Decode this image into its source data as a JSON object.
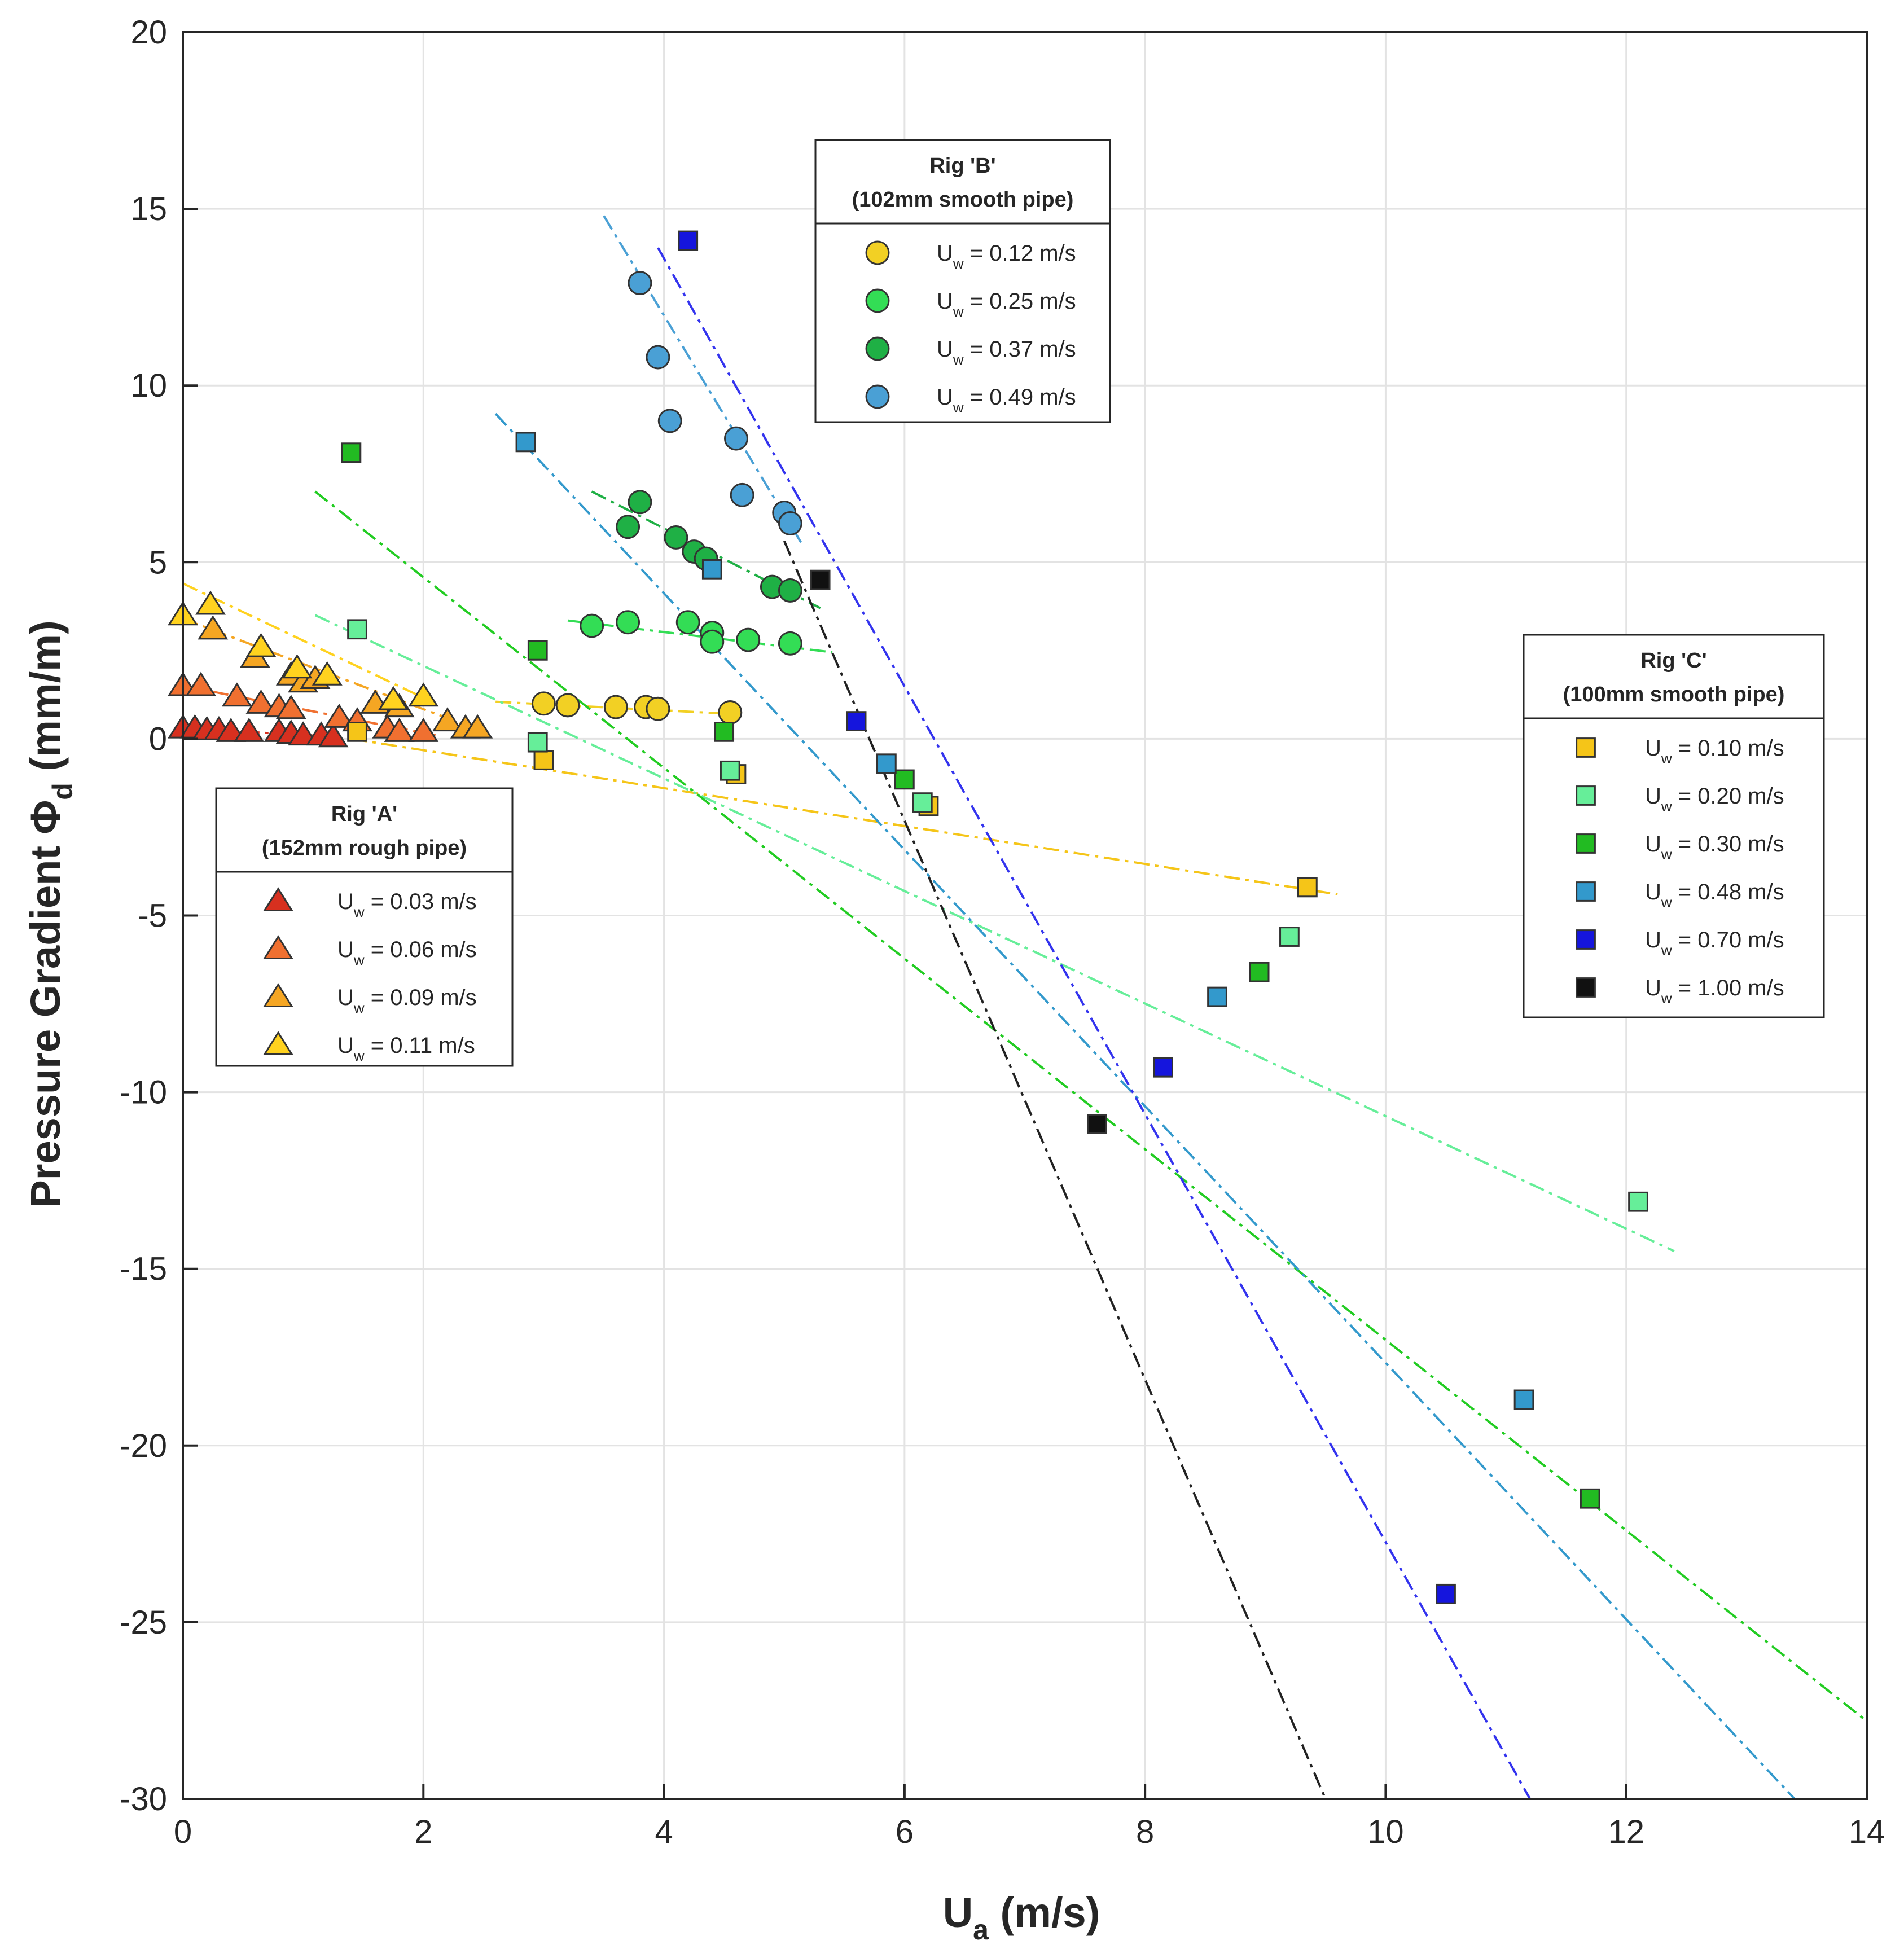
{
  "chart_data": {
    "type": "scatter",
    "xlabel": "U",
    "xlabel_sub": "a",
    "xlabel_unit": " (m/s)",
    "ylabel": "Pressure Gradient  Φ",
    "ylabel_sub": "d",
    "ylabel_unit": " (mm/m)",
    "xlim": [
      0,
      14
    ],
    "ylim": [
      -30,
      20
    ],
    "xticks": [
      0,
      2,
      4,
      6,
      8,
      10,
      12,
      14
    ],
    "yticks": [
      -30,
      -25,
      -20,
      -15,
      -10,
      -5,
      0,
      5,
      10,
      15,
      20
    ],
    "grid": true,
    "legends": [
      {
        "id": "A",
        "title_line1": "Rig 'A'",
        "title_line2": "(152mm rough pipe)",
        "placement": "lower-left",
        "entries": [
          {
            "series": "A1",
            "label_pre": "U",
            "label_sub": "w",
            "label_post": " = 0.03 m/s"
          },
          {
            "series": "A2",
            "label_pre": "U",
            "label_sub": "w",
            "label_post": " = 0.06 m/s"
          },
          {
            "series": "A3",
            "label_pre": "U",
            "label_sub": "w",
            "label_post": " = 0.09 m/s"
          },
          {
            "series": "A4",
            "label_pre": "U",
            "label_sub": "w",
            "label_post": " = 0.11 m/s"
          }
        ]
      },
      {
        "id": "B",
        "title_line1": "Rig 'B'",
        "title_line2": "(102mm smooth pipe)",
        "placement": "top-center",
        "entries": [
          {
            "series": "B1",
            "label_pre": "U",
            "label_sub": "w",
            "label_post": " = 0.12 m/s"
          },
          {
            "series": "B2",
            "label_pre": "U",
            "label_sub": "w",
            "label_post": " = 0.25 m/s"
          },
          {
            "series": "B3",
            "label_pre": "U",
            "label_sub": "w",
            "label_post": " = 0.37 m/s"
          },
          {
            "series": "B4",
            "label_pre": "U",
            "label_sub": "w",
            "label_post": " = 0.49 m/s"
          }
        ]
      },
      {
        "id": "C",
        "title_line1": "Rig 'C'",
        "title_line2": "(100mm smooth pipe)",
        "placement": "right",
        "entries": [
          {
            "series": "C1",
            "label_pre": "U",
            "label_sub": "w",
            "label_post": " = 0.10 m/s"
          },
          {
            "series": "C2",
            "label_pre": "U",
            "label_sub": "w",
            "label_post": " = 0.20 m/s"
          },
          {
            "series": "C3",
            "label_pre": "U",
            "label_sub": "w",
            "label_post": " = 0.30 m/s"
          },
          {
            "series": "C4",
            "label_pre": "U",
            "label_sub": "w",
            "label_post": " = 0.48 m/s"
          },
          {
            "series": "C5",
            "label_pre": "U",
            "label_sub": "w",
            "label_post": " = 0.70 m/s"
          },
          {
            "series": "C6",
            "label_pre": "U",
            "label_sub": "w",
            "label_post": " = 1.00 m/s"
          }
        ]
      }
    ],
    "series": [
      {
        "id": "A1",
        "rig": "A",
        "uw": 0.03,
        "marker": "triangle",
        "color": "#d7301f",
        "x": [
          0.0,
          0.1,
          0.2,
          0.3,
          0.4,
          0.55,
          0.8,
          0.9,
          1.0,
          1.15,
          1.25
        ],
        "y": [
          0.3,
          0.3,
          0.25,
          0.25,
          0.2,
          0.2,
          0.2,
          0.15,
          0.1,
          0.1,
          0.05
        ],
        "trend": {
          "color": "#d7301f",
          "x": [
            0.0,
            1.3
          ],
          "y": [
            0.3,
            0.05
          ]
        }
      },
      {
        "id": "A2",
        "rig": "A",
        "uw": 0.06,
        "marker": "triangle",
        "color": "#f07030",
        "x": [
          0.0,
          0.15,
          0.45,
          0.65,
          0.8,
          0.9,
          1.3,
          1.45,
          1.7,
          1.8,
          2.0
        ],
        "y": [
          1.5,
          1.5,
          1.2,
          1.0,
          0.9,
          0.85,
          0.6,
          0.5,
          0.3,
          0.2,
          0.2
        ],
        "trend": {
          "color": "#f07030",
          "x": [
            0.0,
            2.1
          ],
          "y": [
            1.5,
            0.1
          ]
        }
      },
      {
        "id": "A3",
        "rig": "A",
        "uw": 0.09,
        "marker": "triangle",
        "color": "#f5a623",
        "x": [
          0.25,
          0.6,
          0.9,
          1.0,
          1.1,
          1.6,
          1.8,
          2.2,
          2.35,
          2.45
        ],
        "y": [
          3.1,
          2.3,
          1.8,
          1.6,
          1.7,
          1.0,
          0.9,
          0.5,
          0.3,
          0.3
        ],
        "trend": {
          "color": "#f5a623",
          "x": [
            0.0,
            2.5
          ],
          "y": [
            3.4,
            0.2
          ]
        }
      },
      {
        "id": "A4",
        "rig": "A",
        "uw": 0.11,
        "marker": "triangle",
        "color": "#ffd21f",
        "x": [
          0.0,
          0.23,
          0.65,
          0.95,
          1.2,
          1.75,
          2.0
        ],
        "y": [
          3.5,
          3.8,
          2.6,
          2.0,
          1.8,
          1.1,
          1.2
        ],
        "trend": {
          "color": "#ffd21f",
          "x": [
            0.0,
            2.1
          ],
          "y": [
            4.4,
            1.0
          ]
        }
      },
      {
        "id": "B1",
        "rig": "B",
        "uw": 0.12,
        "marker": "circle",
        "color": "#f2d024",
        "x": [
          3.0,
          3.2,
          3.6,
          3.85,
          3.95,
          4.55
        ],
        "y": [
          1.0,
          0.95,
          0.9,
          0.9,
          0.85,
          0.75
        ],
        "trend": {
          "color": "#f2d024",
          "x": [
            2.6,
            4.6
          ],
          "y": [
            1.05,
            0.7
          ]
        }
      },
      {
        "id": "B2",
        "rig": "B",
        "uw": 0.25,
        "marker": "circle",
        "color": "#33dd55",
        "x": [
          3.4,
          3.7,
          4.2,
          4.4,
          4.4,
          4.7,
          5.05
        ],
        "y": [
          3.2,
          3.3,
          3.3,
          3.0,
          2.75,
          2.8,
          2.7
        ],
        "trend": {
          "color": "#33dd55",
          "x": [
            3.2,
            5.4
          ],
          "y": [
            3.35,
            2.45
          ]
        }
      },
      {
        "id": "B3",
        "rig": "B",
        "uw": 0.37,
        "marker": "circle",
        "color": "#1fb045",
        "x": [
          3.7,
          3.8,
          4.1,
          4.25,
          4.35,
          4.9,
          5.05
        ],
        "y": [
          6.0,
          6.7,
          5.7,
          5.3,
          5.1,
          4.3,
          4.2
        ],
        "trend": {
          "color": "#1fb045",
          "x": [
            3.4,
            5.3
          ],
          "y": [
            7.0,
            3.7
          ]
        }
      },
      {
        "id": "B4",
        "rig": "B",
        "uw": 0.49,
        "marker": "circle",
        "color": "#4aa0d5",
        "x": [
          3.8,
          3.95,
          4.05,
          4.6,
          4.65,
          5.0,
          5.05
        ],
        "y": [
          12.9,
          10.8,
          9.0,
          8.5,
          6.9,
          6.4,
          6.1
        ],
        "trend": {
          "color": "#4aa0d5",
          "x": [
            3.5,
            5.15
          ],
          "y": [
            14.8,
            5.5
          ]
        }
      },
      {
        "id": "C1",
        "rig": "C",
        "uw": 0.1,
        "marker": "square",
        "color": "#f5c518",
        "x": [
          1.45,
          3.0,
          4.6,
          6.2,
          9.35
        ],
        "y": [
          0.2,
          -0.6,
          -1.0,
          -1.9,
          -4.2
        ],
        "trend": {
          "color": "#f5c518",
          "x": [
            1.4,
            9.6
          ],
          "y": [
            0.0,
            -4.4
          ]
        }
      },
      {
        "id": "C2",
        "rig": "C",
        "uw": 0.2,
        "marker": "square",
        "color": "#66ee99",
        "x": [
          1.45,
          2.95,
          4.55,
          6.15,
          9.2,
          12.1
        ],
        "y": [
          3.1,
          -0.1,
          -0.9,
          -1.8,
          -5.6,
          -13.1
        ],
        "trend": {
          "color": "#66ee99",
          "x": [
            1.1,
            12.4
          ],
          "y": [
            3.5,
            -14.5
          ]
        }
      },
      {
        "id": "C3",
        "rig": "C",
        "uw": 0.3,
        "marker": "square",
        "color": "#22bb22",
        "x": [
          1.4,
          2.95,
          4.5,
          6.0,
          8.95,
          11.7
        ],
        "y": [
          8.1,
          2.5,
          0.2,
          -1.15,
          -6.6,
          -21.5
        ],
        "trend": {
          "color": "#22cc22",
          "x": [
            1.1,
            14.0
          ],
          "y": [
            7.0,
            -27.8
          ]
        }
      },
      {
        "id": "C4",
        "rig": "C",
        "uw": 0.48,
        "marker": "square",
        "color": "#3399cc",
        "x": [
          2.85,
          4.4,
          5.85,
          8.6,
          11.15
        ],
        "y": [
          8.4,
          4.8,
          -0.7,
          -7.3,
          -18.7
        ],
        "trend": {
          "color": "#3399cc",
          "x": [
            2.6,
            13.4
          ],
          "y": [
            9.2,
            -30.0
          ]
        }
      },
      {
        "id": "C5",
        "rig": "C",
        "uw": 0.7,
        "marker": "square",
        "color": "#1515dd",
        "x": [
          4.2,
          5.6,
          8.15,
          10.5
        ],
        "y": [
          14.1,
          0.5,
          -9.3,
          -24.2
        ],
        "trend": {
          "color": "#3333ee",
          "x": [
            3.95,
            11.2
          ],
          "y": [
            13.9,
            -30.0
          ]
        }
      },
      {
        "id": "C6",
        "rig": "C",
        "uw": 1.0,
        "marker": "square",
        "color": "#111111",
        "x": [
          5.3,
          7.6
        ],
        "y": [
          4.5,
          -10.9
        ],
        "trend": {
          "color": "#222222",
          "x": [
            5.0,
            9.5
          ],
          "y": [
            5.6,
            -30.0
          ]
        }
      }
    ]
  }
}
